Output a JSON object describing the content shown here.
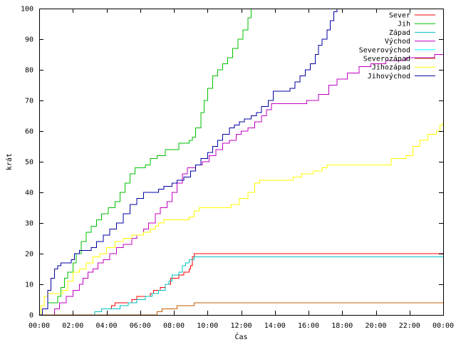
{
  "chart_data": {
    "type": "line",
    "xlabel": "Čas",
    "ylabel": "krát",
    "xlim": [
      0,
      24
    ],
    "ylim": [
      0,
      100
    ],
    "x_ticks": [
      {
        "value": 0,
        "label": "00:00"
      },
      {
        "value": 2,
        "label": "02:00"
      },
      {
        "value": 4,
        "label": "04:00"
      },
      {
        "value": 6,
        "label": "06:00"
      },
      {
        "value": 8,
        "label": "08:00"
      },
      {
        "value": 10,
        "label": "10:00"
      },
      {
        "value": 12,
        "label": "12:00"
      },
      {
        "value": 14,
        "label": "14:00"
      },
      {
        "value": 16,
        "label": "16:00"
      },
      {
        "value": 18,
        "label": "18:00"
      },
      {
        "value": 20,
        "label": "20:00"
      },
      {
        "value": 22,
        "label": "22:00"
      },
      {
        "value": 24,
        "label": "00:00"
      }
    ],
    "y_ticks": [
      0,
      10,
      20,
      30,
      40,
      50,
      60,
      70,
      80,
      90,
      100
    ],
    "grid": false,
    "legend_position": "top-right",
    "step": true,
    "series": [
      {
        "name": "Sever",
        "color": "#ff0000",
        "points": [
          [
            0,
            0
          ],
          [
            1.4,
            0
          ],
          [
            3.3,
            1
          ],
          [
            3.7,
            2
          ],
          [
            4.3,
            3
          ],
          [
            4.5,
            4
          ],
          [
            5.5,
            5
          ],
          [
            5.8,
            6
          ],
          [
            6.6,
            7
          ],
          [
            6.8,
            8
          ],
          [
            7.2,
            9
          ],
          [
            7.5,
            10
          ],
          [
            7.8,
            12
          ],
          [
            8.3,
            13
          ],
          [
            8.6,
            14
          ],
          [
            8.9,
            15
          ],
          [
            9.0,
            16
          ],
          [
            9.1,
            19
          ],
          [
            9.2,
            20
          ],
          [
            24,
            20
          ]
        ]
      },
      {
        "name": "Jih",
        "color": "#00c000",
        "points": [
          [
            0,
            0
          ],
          [
            0.2,
            2
          ],
          [
            0.5,
            4
          ],
          [
            1.1,
            6
          ],
          [
            1.3,
            9
          ],
          [
            1.5,
            12
          ],
          [
            1.7,
            14
          ],
          [
            2.0,
            17
          ],
          [
            2.2,
            20
          ],
          [
            2.5,
            24
          ],
          [
            2.8,
            27
          ],
          [
            3.1,
            29
          ],
          [
            3.4,
            31
          ],
          [
            3.7,
            33
          ],
          [
            4.1,
            35
          ],
          [
            4.5,
            37
          ],
          [
            4.8,
            40
          ],
          [
            5.1,
            43
          ],
          [
            5.4,
            46
          ],
          [
            5.7,
            48
          ],
          [
            6.3,
            49
          ],
          [
            6.6,
            51
          ],
          [
            7.0,
            52
          ],
          [
            7.5,
            54
          ],
          [
            8.3,
            56
          ],
          [
            8.9,
            57
          ],
          [
            9.1,
            58
          ],
          [
            9.3,
            61
          ],
          [
            9.6,
            66
          ],
          [
            9.8,
            70
          ],
          [
            10.0,
            74
          ],
          [
            10.3,
            78
          ],
          [
            10.6,
            80
          ],
          [
            10.9,
            82
          ],
          [
            11.2,
            84
          ],
          [
            11.5,
            87
          ],
          [
            11.8,
            90
          ],
          [
            12.1,
            93
          ],
          [
            12.4,
            97
          ],
          [
            12.6,
            100
          ]
        ]
      },
      {
        "name": "Západ",
        "color": "#00c0c0",
        "points": [
          [
            0,
            0
          ],
          [
            1.4,
            0
          ],
          [
            3.3,
            1
          ],
          [
            3.7,
            2
          ],
          [
            4.8,
            3
          ],
          [
            5.3,
            4
          ],
          [
            5.8,
            5
          ],
          [
            6.3,
            6
          ],
          [
            6.7,
            7
          ],
          [
            7.1,
            8
          ],
          [
            7.5,
            10
          ],
          [
            7.7,
            11
          ],
          [
            7.9,
            13
          ],
          [
            8.3,
            14
          ],
          [
            8.5,
            16
          ],
          [
            8.7,
            17
          ],
          [
            8.9,
            18
          ],
          [
            9.2,
            19
          ],
          [
            24,
            19
          ]
        ]
      },
      {
        "name": "Východ",
        "color": "#c000c0",
        "points": [
          [
            0,
            0
          ],
          [
            0.7,
            0
          ],
          [
            0.9,
            2
          ],
          [
            1.2,
            4
          ],
          [
            1.6,
            6
          ],
          [
            2.0,
            8
          ],
          [
            2.4,
            10
          ],
          [
            2.6,
            12
          ],
          [
            2.9,
            14
          ],
          [
            3.2,
            15
          ],
          [
            3.5,
            17
          ],
          [
            3.8,
            18
          ],
          [
            4.2,
            20
          ],
          [
            4.6,
            22
          ],
          [
            5.0,
            23
          ],
          [
            5.5,
            25
          ],
          [
            5.8,
            26
          ],
          [
            6.2,
            28
          ],
          [
            6.5,
            30
          ],
          [
            6.9,
            33
          ],
          [
            7.2,
            35
          ],
          [
            7.6,
            37
          ],
          [
            7.9,
            40
          ],
          [
            8.2,
            43
          ],
          [
            8.5,
            46
          ],
          [
            8.8,
            48
          ],
          [
            9.3,
            49
          ],
          [
            9.7,
            50
          ],
          [
            10.1,
            52
          ],
          [
            10.5,
            54
          ],
          [
            10.9,
            56
          ],
          [
            11.3,
            57
          ],
          [
            11.7,
            59
          ],
          [
            12.0,
            60
          ],
          [
            12.4,
            61
          ],
          [
            12.8,
            63
          ],
          [
            13.2,
            65
          ],
          [
            13.5,
            67
          ],
          [
            13.8,
            69
          ],
          [
            15.2,
            69
          ],
          [
            15.9,
            70
          ],
          [
            16.6,
            72
          ],
          [
            17.2,
            75
          ],
          [
            17.7,
            77
          ],
          [
            18.3,
            79
          ],
          [
            19.0,
            81
          ],
          [
            19.7,
            82
          ],
          [
            20.6,
            83
          ],
          [
            21.8,
            84
          ],
          [
            23.1,
            84
          ],
          [
            23.5,
            85
          ],
          [
            24,
            85
          ]
        ]
      },
      {
        "name": "Severovýchod",
        "color": "#00ffff",
        "points": []
      },
      {
        "name": "Severozápad",
        "color": "#c06000",
        "points": [
          [
            0,
            0
          ],
          [
            6.5,
            0
          ],
          [
            7.0,
            1
          ],
          [
            7.3,
            2
          ],
          [
            8.2,
            3
          ],
          [
            9.2,
            4
          ],
          [
            24,
            4
          ]
        ]
      },
      {
        "name": "Jihozápad",
        "color": "#ffff00",
        "points": [
          [
            0,
            0
          ],
          [
            0.1,
            3
          ],
          [
            0.3,
            6
          ],
          [
            0.5,
            7
          ],
          [
            1.4,
            8
          ],
          [
            1.7,
            11
          ],
          [
            2.0,
            14
          ],
          [
            2.4,
            15
          ],
          [
            2.8,
            17
          ],
          [
            3.2,
            19
          ],
          [
            3.6,
            20
          ],
          [
            4.0,
            22
          ],
          [
            4.5,
            24
          ],
          [
            5.0,
            25
          ],
          [
            5.5,
            26
          ],
          [
            6.2,
            27
          ],
          [
            6.6,
            28
          ],
          [
            6.9,
            29
          ],
          [
            7.1,
            30
          ],
          [
            7.4,
            31
          ],
          [
            8.3,
            31
          ],
          [
            8.9,
            32
          ],
          [
            9.2,
            34
          ],
          [
            9.5,
            35
          ],
          [
            10.8,
            35
          ],
          [
            11.4,
            36
          ],
          [
            11.9,
            38
          ],
          [
            12.4,
            40
          ],
          [
            12.8,
            43
          ],
          [
            13.1,
            44
          ],
          [
            14.5,
            44
          ],
          [
            15.1,
            45
          ],
          [
            15.6,
            46
          ],
          [
            16.3,
            47
          ],
          [
            16.8,
            48
          ],
          [
            17.1,
            49
          ],
          [
            18.6,
            49
          ],
          [
            20.5,
            49
          ],
          [
            20.9,
            51
          ],
          [
            21.8,
            52
          ],
          [
            22.2,
            55
          ],
          [
            22.6,
            57
          ],
          [
            23.1,
            59
          ],
          [
            23.6,
            60
          ],
          [
            23.8,
            62
          ],
          [
            24,
            63
          ]
        ]
      },
      {
        "name": "Jihovýchod",
        "color": "#0000a0",
        "points": [
          [
            0,
            0
          ],
          [
            0.2,
            2
          ],
          [
            0.5,
            8
          ],
          [
            0.7,
            12
          ],
          [
            0.9,
            15
          ],
          [
            1.1,
            16
          ],
          [
            1.3,
            17
          ],
          [
            1.9,
            18
          ],
          [
            2.1,
            20
          ],
          [
            2.4,
            21
          ],
          [
            3.1,
            22
          ],
          [
            3.4,
            24
          ],
          [
            3.8,
            26
          ],
          [
            4.2,
            28
          ],
          [
            4.6,
            30
          ],
          [
            5.0,
            33
          ],
          [
            5.4,
            36
          ],
          [
            5.8,
            38
          ],
          [
            6.2,
            40
          ],
          [
            6.8,
            40
          ],
          [
            7.1,
            41
          ],
          [
            7.4,
            42
          ],
          [
            7.9,
            43
          ],
          [
            8.2,
            44
          ],
          [
            8.6,
            45
          ],
          [
            9.0,
            47
          ],
          [
            9.3,
            49
          ],
          [
            9.6,
            51
          ],
          [
            10.0,
            53
          ],
          [
            10.3,
            55
          ],
          [
            10.6,
            57
          ],
          [
            10.9,
            59
          ],
          [
            11.3,
            61
          ],
          [
            11.6,
            62
          ],
          [
            11.9,
            63
          ],
          [
            12.2,
            64
          ],
          [
            12.6,
            65
          ],
          [
            12.9,
            66
          ],
          [
            13.2,
            68
          ],
          [
            13.6,
            70
          ],
          [
            13.9,
            73
          ],
          [
            14.6,
            73
          ],
          [
            14.9,
            74
          ],
          [
            15.2,
            76
          ],
          [
            15.5,
            78
          ],
          [
            15.8,
            80
          ],
          [
            16.1,
            82
          ],
          [
            16.4,
            85
          ],
          [
            16.6,
            88
          ],
          [
            16.8,
            90
          ],
          [
            17.1,
            93
          ],
          [
            17.3,
            96
          ],
          [
            17.5,
            99
          ],
          [
            17.7,
            100
          ]
        ]
      }
    ]
  }
}
